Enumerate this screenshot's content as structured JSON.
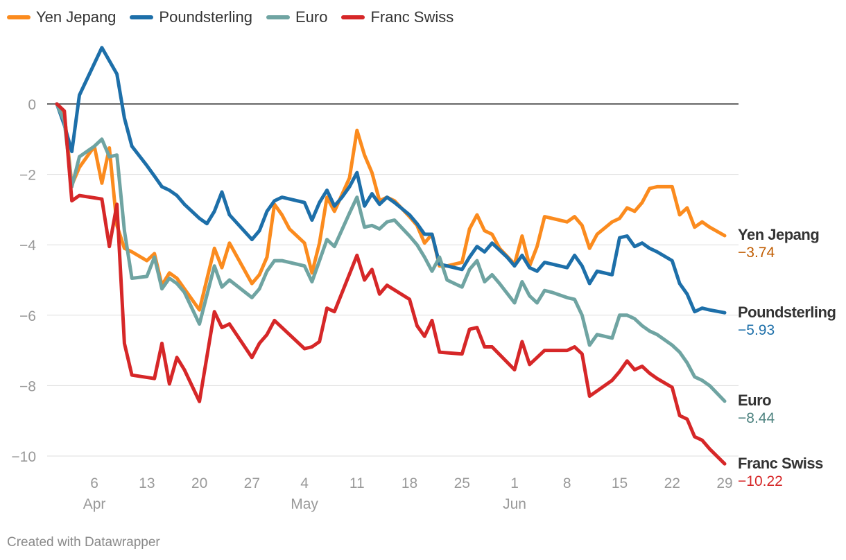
{
  "chart_data": {
    "type": "line",
    "title": "",
    "xlabel": "",
    "ylabel": "",
    "ylim": [
      -10.8,
      1.9
    ],
    "y_ticks": [
      0,
      -2,
      -4,
      -6,
      -8,
      -10
    ],
    "y_tick_labels": [
      "0",
      "−2",
      "−4",
      "−6",
      "−8",
      "−10"
    ],
    "x_ticks": [
      {
        "label": "6",
        "day": 6,
        "month": "Apr"
      },
      {
        "label": "13",
        "day": 13
      },
      {
        "label": "20",
        "day": 20
      },
      {
        "label": "27",
        "day": 27
      },
      {
        "label": "4",
        "day": 34,
        "month": "May"
      },
      {
        "label": "11",
        "day": 41
      },
      {
        "label": "18",
        "day": 48
      },
      {
        "label": "25",
        "day": 55
      },
      {
        "label": "1",
        "day": 62,
        "month": "Jun"
      },
      {
        "label": "8",
        "day": 69
      },
      {
        "label": "15",
        "day": 76
      },
      {
        "label": "22",
        "day": 83
      },
      {
        "label": "29",
        "day": 90
      }
    ],
    "x_note": "x values are days counted from 31 Mar (Apr 1 = 1, May 1 = 31, Jun 1 = 62)",
    "series": [
      {
        "name": "Yen Jepang",
        "color": "#fb8b1e",
        "end_label": "Yen Jepang",
        "end_value": "−3.74",
        "value_color": "#c05c00",
        "x": [
          1,
          2,
          3,
          4,
          6,
          7,
          8,
          9,
          10,
          11,
          13,
          14,
          15,
          16,
          17,
          18,
          20,
          22,
          23,
          24,
          27,
          28,
          29,
          30,
          31,
          32,
          34,
          35,
          36,
          37,
          38,
          40,
          41,
          42,
          43,
          44,
          45,
          46,
          48,
          49,
          50,
          51,
          52,
          53,
          55,
          56,
          57,
          58,
          59,
          60,
          62,
          63,
          64,
          65,
          66,
          67,
          69,
          70,
          71,
          72,
          73,
          75,
          76,
          77,
          78,
          79,
          80,
          81,
          83,
          84,
          85,
          86,
          87,
          88,
          90
        ],
        "y": [
          0,
          -0.3,
          -2.3,
          -1.8,
          -1.2,
          -2.25,
          -1.25,
          -3.45,
          -4.1,
          -4.2,
          -4.45,
          -4.25,
          -5.15,
          -4.8,
          -4.95,
          -5.25,
          -5.85,
          -4.1,
          -4.65,
          -3.95,
          -5.1,
          -4.85,
          -4.35,
          -2.85,
          -3.15,
          -3.55,
          -3.95,
          -4.8,
          -3.95,
          -2.65,
          -3.05,
          -2.1,
          -0.75,
          -1.45,
          -1.95,
          -2.75,
          -2.65,
          -2.75,
          -3.2,
          -3.45,
          -3.95,
          -3.7,
          -4.6,
          -4.6,
          -4.5,
          -3.55,
          -3.15,
          -3.6,
          -3.7,
          -4.1,
          -4.55,
          -3.75,
          -4.6,
          -4.05,
          -3.2,
          -3.25,
          -3.35,
          -3.2,
          -3.45,
          -4.1,
          -3.7,
          -3.35,
          -3.25,
          -2.95,
          -3.05,
          -2.8,
          -2.4,
          -2.35,
          -2.35,
          -3.15,
          -2.95,
          -3.5,
          -3.35,
          -3.5,
          -3.74
        ]
      },
      {
        "name": "Poundsterling",
        "color": "#1d6fa9",
        "end_label": "Poundsterling",
        "end_value": "−5.93",
        "value_color": "#1d6fa9",
        "x": [
          1,
          2,
          3,
          4,
          7,
          9,
          10,
          11,
          13,
          14,
          15,
          16,
          17,
          18,
          20,
          21,
          22,
          23,
          24,
          27,
          28,
          29,
          30,
          31,
          34,
          35,
          36,
          37,
          38,
          39,
          40,
          41,
          42,
          43,
          44,
          45,
          46,
          48,
          49,
          50,
          51,
          52,
          55,
          56,
          57,
          58,
          59,
          60,
          61,
          62,
          63,
          64,
          65,
          66,
          67,
          69,
          70,
          71,
          72,
          73,
          75,
          76,
          77,
          78,
          79,
          80,
          81,
          83,
          84,
          85,
          86,
          87,
          88,
          90
        ],
        "y": [
          0,
          -0.6,
          -1.35,
          0.25,
          1.6,
          0.85,
          -0.4,
          -1.2,
          -1.75,
          -2.05,
          -2.35,
          -2.45,
          -2.6,
          -2.85,
          -3.25,
          -3.4,
          -3.05,
          -2.5,
          -3.15,
          -3.85,
          -3.6,
          -3.05,
          -2.75,
          -2.65,
          -2.8,
          -3.3,
          -2.8,
          -2.45,
          -2.9,
          -2.65,
          -2.35,
          -1.95,
          -2.9,
          -2.55,
          -2.85,
          -2.65,
          -2.8,
          -3.15,
          -3.4,
          -3.7,
          -3.7,
          -4.55,
          -4.7,
          -4.35,
          -4.05,
          -4.2,
          -3.95,
          -4.15,
          -4.35,
          -4.6,
          -4.3,
          -4.65,
          -4.75,
          -4.5,
          -4.55,
          -4.65,
          -4.3,
          -4.6,
          -5.1,
          -4.75,
          -4.85,
          -3.8,
          -3.75,
          -4.05,
          -3.95,
          -4.1,
          -4.2,
          -4.45,
          -5.1,
          -5.4,
          -5.9,
          -5.8,
          -5.85,
          -5.93
        ]
      },
      {
        "name": "Euro",
        "color": "#6fa4a2",
        "end_label": "Euro",
        "end_value": "−8.44",
        "value_color": "#4e8380",
        "x": [
          1,
          2,
          3,
          4,
          6,
          7,
          8,
          9,
          10,
          11,
          13,
          14,
          15,
          16,
          17,
          18,
          20,
          22,
          23,
          24,
          27,
          28,
          29,
          30,
          31,
          34,
          35,
          36,
          37,
          38,
          40,
          41,
          42,
          43,
          44,
          45,
          46,
          48,
          49,
          50,
          51,
          52,
          53,
          55,
          56,
          57,
          58,
          59,
          60,
          62,
          63,
          64,
          65,
          66,
          67,
          69,
          70,
          71,
          72,
          73,
          75,
          76,
          77,
          78,
          79,
          80,
          81,
          83,
          84,
          85,
          86,
          87,
          88,
          90
        ],
        "y": [
          0,
          -0.5,
          -2.35,
          -1.5,
          -1.2,
          -1.0,
          -1.5,
          -1.45,
          -3.6,
          -4.95,
          -4.9,
          -4.35,
          -5.25,
          -4.95,
          -5.1,
          -5.35,
          -6.25,
          -4.6,
          -5.2,
          -5.0,
          -5.5,
          -5.25,
          -4.75,
          -4.45,
          -4.45,
          -4.6,
          -5.05,
          -4.45,
          -3.85,
          -4.05,
          -3.1,
          -2.65,
          -3.5,
          -3.45,
          -3.55,
          -3.35,
          -3.3,
          -3.75,
          -4.0,
          -4.35,
          -4.75,
          -4.35,
          -5.0,
          -5.2,
          -4.7,
          -4.45,
          -5.05,
          -4.85,
          -5.1,
          -5.65,
          -5.05,
          -5.45,
          -5.65,
          -5.3,
          -5.35,
          -5.5,
          -5.55,
          -6.0,
          -6.85,
          -6.55,
          -6.65,
          -6.0,
          -6.0,
          -6.1,
          -6.3,
          -6.45,
          -6.55,
          -6.85,
          -7.05,
          -7.35,
          -7.75,
          -7.85,
          -8.0,
          -8.44
        ]
      },
      {
        "name": "Franc Swiss",
        "color": "#d62728",
        "end_label": "Franc Swiss",
        "end_value": "−10.22",
        "value_color": "#d62728",
        "x": [
          1,
          2,
          3,
          4,
          7,
          8,
          9,
          10,
          11,
          14,
          15,
          16,
          17,
          18,
          20,
          22,
          23,
          24,
          27,
          28,
          29,
          30,
          31,
          34,
          35,
          36,
          37,
          38,
          41,
          42,
          43,
          44,
          45,
          48,
          49,
          50,
          51,
          52,
          55,
          56,
          57,
          58,
          59,
          62,
          63,
          64,
          65,
          66,
          67,
          69,
          70,
          71,
          72,
          73,
          75,
          76,
          77,
          78,
          79,
          80,
          81,
          83,
          84,
          85,
          86,
          87,
          88,
          90
        ],
        "y": [
          0,
          -0.2,
          -2.75,
          -2.6,
          -2.7,
          -4.05,
          -2.85,
          -6.8,
          -7.7,
          -7.8,
          -6.8,
          -7.95,
          -7.2,
          -7.55,
          -8.45,
          -5.9,
          -6.35,
          -6.25,
          -7.2,
          -6.8,
          -6.55,
          -6.15,
          -6.35,
          -6.95,
          -6.9,
          -6.75,
          -5.8,
          -5.9,
          -4.3,
          -5.0,
          -4.7,
          -5.4,
          -5.15,
          -5.55,
          -6.3,
          -6.6,
          -6.15,
          -7.05,
          -7.1,
          -6.4,
          -6.35,
          -6.9,
          -6.9,
          -7.55,
          -6.75,
          -7.4,
          -7.2,
          -7.0,
          -7.0,
          -7.0,
          -6.9,
          -7.1,
          -8.3,
          -8.15,
          -7.85,
          -7.6,
          -7.3,
          -7.55,
          -7.45,
          -7.65,
          -7.8,
          -8.05,
          -8.85,
          -8.95,
          -9.45,
          -9.55,
          -9.8,
          -10.22
        ]
      }
    ],
    "credit": "Created with Datawrapper"
  }
}
